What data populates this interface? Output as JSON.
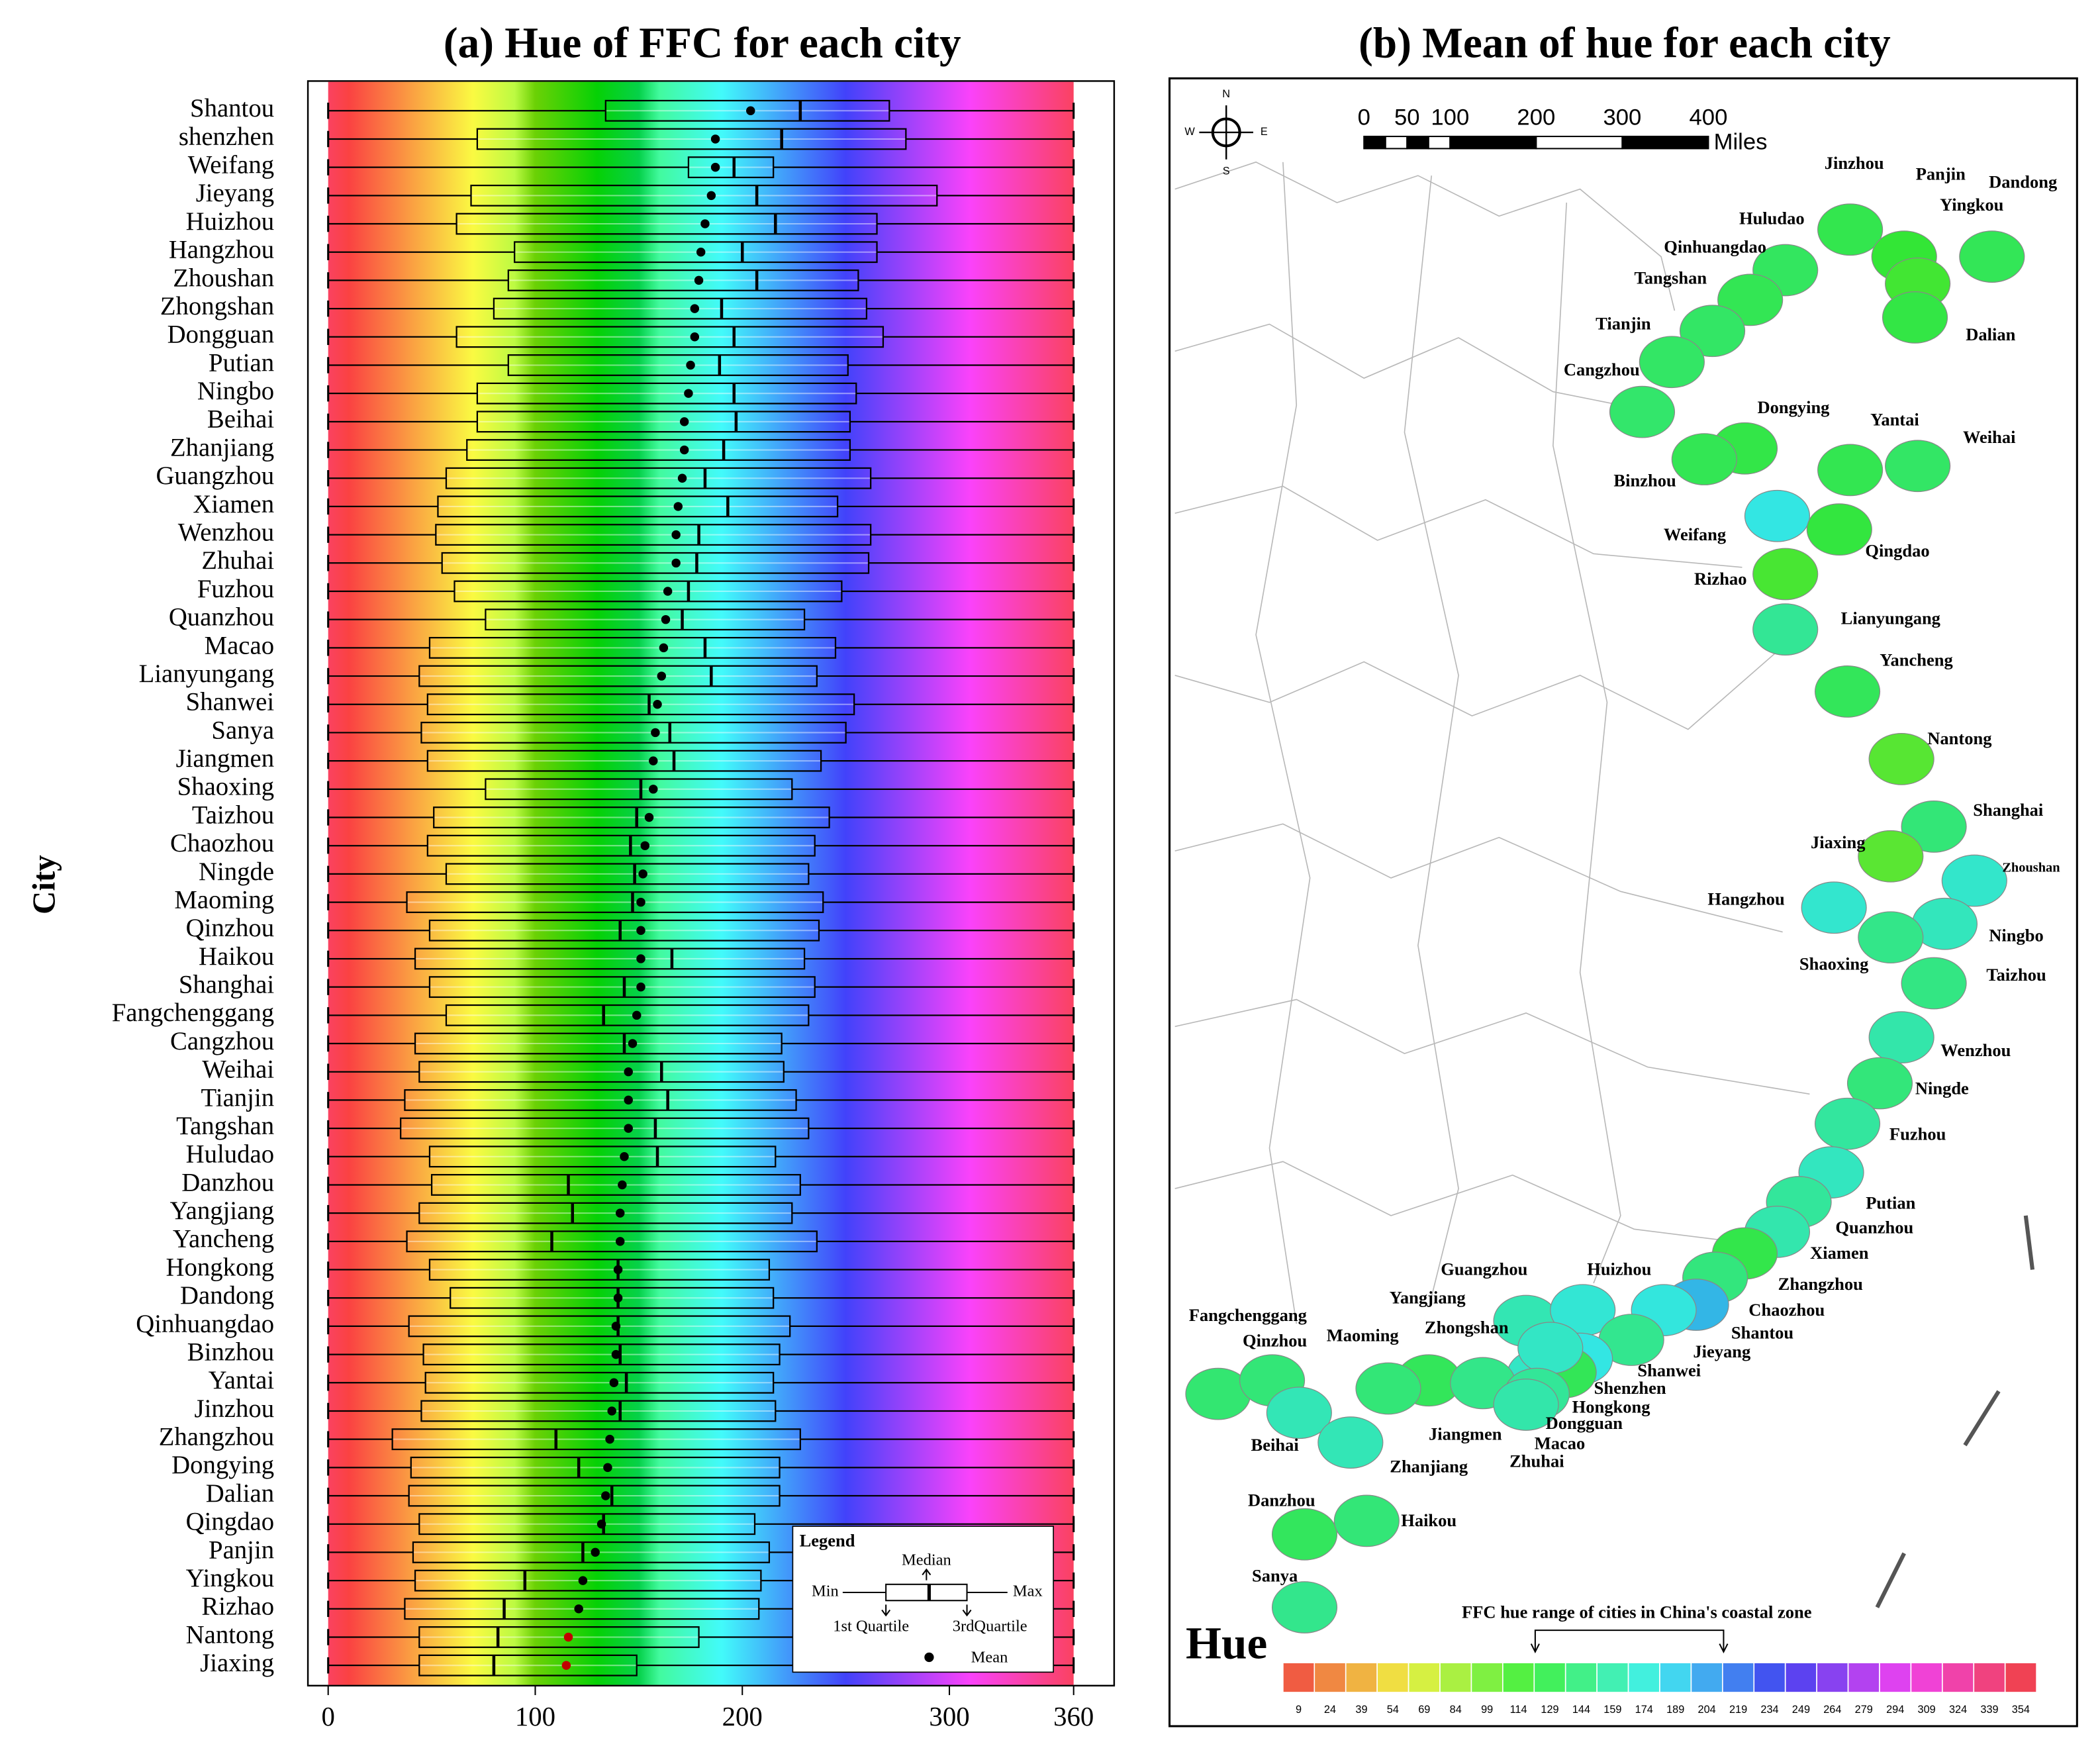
{
  "chart_data": {
    "type": "box",
    "title": "(a) Hue of FFC for each city",
    "ylabel": "City",
    "categories": [
      "Shantou",
      "shenzhen",
      "Weifang",
      "Jieyang",
      "Huizhou",
      "Hangzhou",
      "Zhoushan",
      "Zhongshan",
      "Dongguan",
      "Putian",
      "Ningbo",
      "Beihai",
      "Zhanjiang",
      "Guangzhou",
      "Xiamen",
      "Wenzhou",
      "Zhuhai",
      "Fuzhou",
      "Quanzhou",
      "Macao",
      "Lianyungang",
      "Shanwei",
      "Sanya",
      "Jiangmen",
      "Shaoxing",
      "Taizhou",
      "Chaozhou",
      "Ningde",
      "Maoming",
      "Qinzhou",
      "Haikou",
      "Shanghai",
      "Fangchenggang",
      "Cangzhou",
      "Weihai",
      "Tianjin",
      "Tangshan",
      "Huludao",
      "Danzhou",
      "Yangjiang",
      "Yancheng",
      "Hongkong",
      "Dandong",
      "Qinhuangdao",
      "Binzhou",
      "Yantai",
      "Jinzhou",
      "Zhangzhou",
      "Dongying",
      "Dalian",
      "Qingdao",
      "Panjin",
      "Yingkou",
      "Rizhao",
      "Nantong",
      "Jiaxing"
    ],
    "min": [
      0,
      0,
      0,
      0,
      0,
      0,
      0,
      0,
      0,
      0,
      0,
      0,
      0,
      0,
      0,
      0,
      0,
      0,
      0,
      0,
      0,
      0,
      0,
      0,
      0,
      0,
      0,
      0,
      0,
      0,
      0,
      0,
      0,
      0,
      0,
      0,
      0,
      0,
      0,
      0,
      0,
      0,
      0,
      0,
      0,
      0,
      0,
      0,
      0,
      0,
      0,
      0,
      0,
      0,
      0,
      0
    ],
    "q1": [
      134,
      72,
      174,
      69,
      62,
      90,
      87,
      80,
      62,
      87,
      72,
      72,
      67,
      57,
      53,
      52,
      55,
      61,
      76,
      49,
      44,
      48,
      45,
      48,
      76,
      51,
      48,
      57,
      38,
      49,
      42,
      49,
      57,
      42,
      44,
      37,
      35,
      49,
      50,
      44,
      38,
      49,
      59,
      39,
      46,
      47,
      45,
      31,
      40,
      39,
      44,
      41,
      42,
      37,
      44,
      44
    ],
    "median": [
      228,
      219,
      196,
      207,
      216,
      200,
      207,
      190,
      196,
      189,
      196,
      197,
      191,
      182,
      193,
      179,
      178,
      174,
      171,
      182,
      185,
      155,
      165,
      167,
      151,
      149,
      146,
      148,
      147,
      141,
      166,
      143,
      133,
      143,
      161,
      164,
      158,
      159,
      116,
      118,
      108,
      140,
      140,
      140,
      141,
      144,
      141,
      110,
      121,
      137,
      133,
      123,
      95,
      85,
      82,
      80
    ],
    "q3": [
      271,
      279,
      215,
      294,
      265,
      265,
      256,
      260,
      268,
      251,
      255,
      252,
      252,
      262,
      246,
      262,
      261,
      248,
      230,
      245,
      236,
      254,
      250,
      238,
      224,
      242,
      235,
      232,
      239,
      237,
      230,
      235,
      232,
      219,
      220,
      226,
      232,
      216,
      228,
      224,
      236,
      213,
      215,
      223,
      218,
      215,
      216,
      228,
      218,
      218,
      206,
      213,
      209,
      208,
      179,
      149
    ],
    "max": [
      360,
      360,
      360,
      360,
      360,
      360,
      360,
      360,
      360,
      360,
      360,
      360,
      360,
      360,
      360,
      360,
      360,
      360,
      360,
      360,
      360,
      360,
      360,
      360,
      360,
      360,
      360,
      360,
      360,
      360,
      360,
      360,
      360,
      360,
      360,
      360,
      360,
      360,
      360,
      360,
      360,
      360,
      360,
      360,
      360,
      360,
      360,
      360,
      360,
      360,
      360,
      360,
      360,
      360,
      360,
      360
    ],
    "mean": [
      204,
      187,
      187,
      185,
      182,
      180,
      179,
      177,
      177,
      175,
      174,
      172,
      172,
      171,
      169,
      168,
      168,
      164,
      163,
      162,
      161,
      159,
      158,
      157,
      157,
      155,
      153,
      152,
      151,
      151,
      151,
      151,
      149,
      147,
      145,
      145,
      145,
      143,
      142,
      141,
      141,
      140,
      140,
      139,
      139,
      138,
      137,
      136,
      135,
      134,
      132,
      129,
      123,
      121,
      116,
      115
    ],
    "mean_colors": [
      "#000000",
      "#000000",
      "#000000",
      "#000000",
      "#000000",
      "#000000",
      "#000000",
      "#000000",
      "#000000",
      "#000000",
      "#000000",
      "#000000",
      "#000000",
      "#000000",
      "#000000",
      "#000000",
      "#000000",
      "#000000",
      "#000000",
      "#000000",
      "#000000",
      "#000000",
      "#000000",
      "#000000",
      "#000000",
      "#000000",
      "#000000",
      "#000000",
      "#000000",
      "#000000",
      "#000000",
      "#000000",
      "#000000",
      "#000000",
      "#000000",
      "#000000",
      "#000000",
      "#000000",
      "#000000",
      "#000000",
      "#000000",
      "#000000",
      "#000000",
      "#000000",
      "#000000",
      "#000000",
      "#000000",
      "#000000",
      "#000000",
      "#000000",
      "#000000",
      "#000000",
      "#000000",
      "#000000",
      "#c00000",
      "#c00000"
    ],
    "xlim": [
      0,
      360
    ],
    "xticks": [
      0,
      100,
      200,
      300,
      360
    ],
    "grid": true,
    "legend": {
      "title": "Legend",
      "median": "Median",
      "min": "Min",
      "max": "Max",
      "q1": "1st Quartile",
      "q3": "3rdQuartile",
      "mean": "Mean"
    }
  },
  "map": {
    "title": "(b) Mean of hue for each city",
    "compass": {
      "n": "N",
      "s": "S",
      "e": "E",
      "w": "W"
    },
    "scalebar": {
      "ticks": [
        0,
        50,
        100,
        200,
        300,
        400
      ],
      "lim": [
        0,
        400
      ],
      "unit": "Miles"
    },
    "labels": [
      "Jinzhou",
      "Panjin",
      "Dandong",
      "Yingkou",
      "Huludao",
      "Qinhuangdao",
      "Tangshan",
      "Tianjin",
      "Dalian",
      "Cangzhou",
      "Dongying",
      "Yantai",
      "Weihai",
      "Binzhou",
      "Weifang",
      "Qingdao",
      "Rizhao",
      "Lianyungang",
      "Yancheng",
      "Nantong",
      "Shanghai",
      "Jiaxing",
      "Zhoushan",
      "Hangzhou",
      "Ningbo",
      "Shaoxing",
      "Taizhou",
      "Wenzhou",
      "Ningde",
      "Fuzhou",
      "Putian",
      "Quanzhou",
      "Xiamen",
      "Zhangzhou",
      "Chaozhou",
      "Shantou",
      "Jieyang",
      "Guangzhou",
      "Huizhou",
      "Yangjiang",
      "Zhongshan",
      "Fangchenggang",
      "Qinzhou",
      "Maoming",
      "Shanwei",
      "Shenzhen",
      "Hongkong",
      "Dongguan",
      "Jiangmen",
      "Macao",
      "Zhuhai",
      "Beihai",
      "Zhanjiang",
      "Danzhou",
      "Haikou",
      "Sanya"
    ],
    "colorbar": {
      "name": "Hue",
      "title": "FFC hue range of cities in China's coastal zone",
      "ticks": [
        9,
        24,
        39,
        54,
        69,
        84,
        99,
        114,
        129,
        144,
        159,
        174,
        189,
        204,
        219,
        234,
        249,
        264,
        279,
        294,
        309,
        324,
        339,
        354
      ],
      "range": [
        122,
        212
      ]
    }
  }
}
